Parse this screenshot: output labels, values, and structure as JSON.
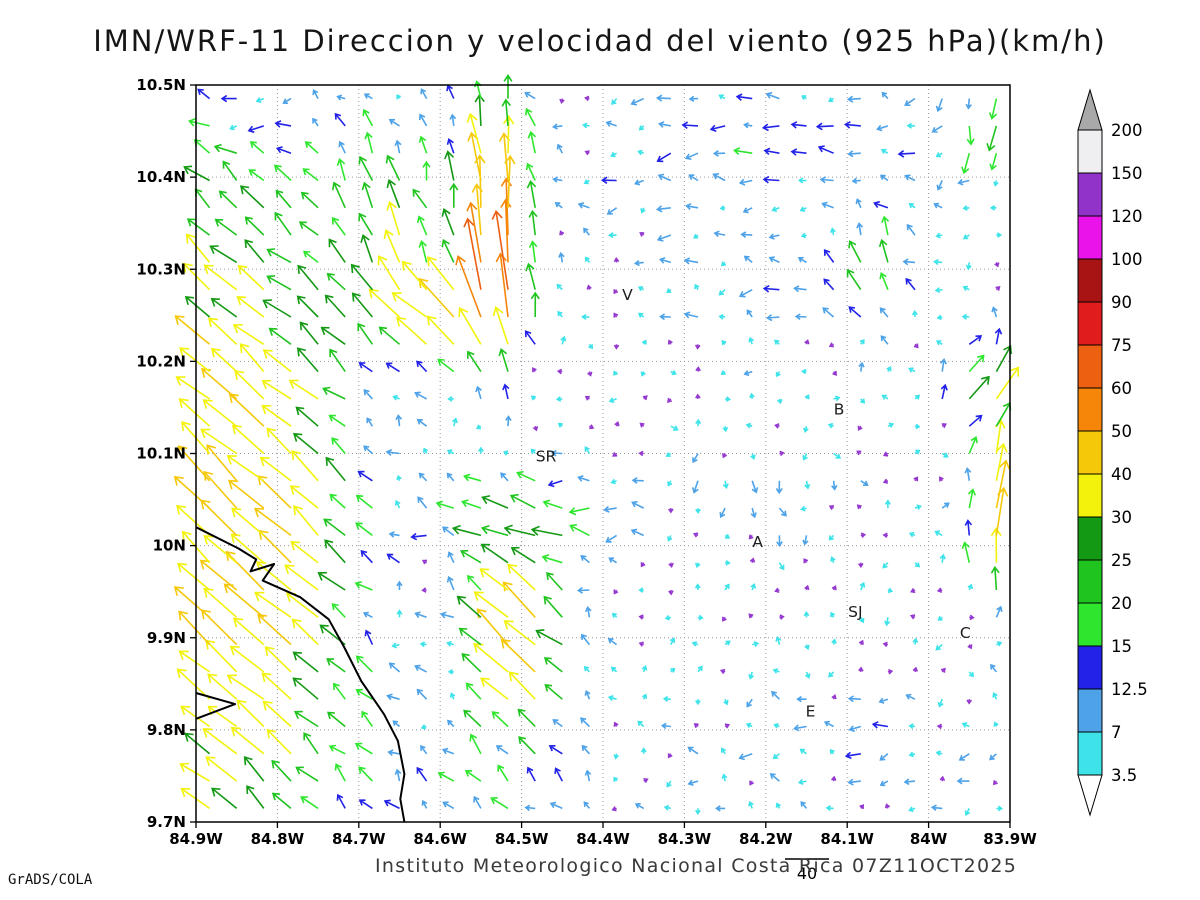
{
  "title": "IMN/WRF-11 Direccion y velocidad del viento (925 hPa)(km/h)",
  "footer": {
    "credit": "Instituto Meteorologico Nacional Costa Rica 07Z11OCT2025",
    "engine": "GrADS/COLA",
    "reference_vector_label": "40"
  },
  "axes": {
    "lat_ticks": [
      "10.5N",
      "10.4N",
      "10.3N",
      "10.2N",
      "10.1N",
      "10N",
      "9.9N",
      "9.8N",
      "9.7N"
    ],
    "lat_values": [
      10.5,
      10.4,
      10.3,
      10.2,
      10.1,
      10.0,
      9.9,
      9.8,
      9.7
    ],
    "lon_ticks": [
      "84.9W",
      "84.8W",
      "84.7W",
      "84.6W",
      "84.5W",
      "84.4W",
      "84.3W",
      "84.2W",
      "84.1W",
      "84W",
      "83.9W"
    ],
    "lon_values": [
      -84.9,
      -84.8,
      -84.7,
      -84.6,
      -84.5,
      -84.4,
      -84.3,
      -84.2,
      -84.1,
      -84.0,
      -83.9
    ]
  },
  "stations": [
    {
      "label": "V",
      "lon": -84.37,
      "lat": 10.272
    },
    {
      "label": "B",
      "lon": -84.11,
      "lat": 10.148
    },
    {
      "label": "SR",
      "lon": -84.47,
      "lat": 10.097
    },
    {
      "label": "A",
      "lon": -84.21,
      "lat": 10.004
    },
    {
      "label": "SJ",
      "lon": -84.09,
      "lat": 9.928
    },
    {
      "label": "C",
      "lon": -83.955,
      "lat": 9.905
    },
    {
      "label": "E",
      "lon": -84.145,
      "lat": 9.82
    }
  ],
  "chart_data": {
    "type": "vector_field",
    "variable": "wind direction and speed",
    "level": "925 hPa",
    "units": "km/h",
    "model": "IMN/WRF-11",
    "valid_time": "07Z11OCT2025",
    "lon_range": [
      -84.9,
      -83.9
    ],
    "lat_range": [
      9.7,
      10.5
    ],
    "grid_cols": 30,
    "grid_rows": 27,
    "reference_speed": 40,
    "noise_min": 1.5,
    "noise_max": 7,
    "colorbar": {
      "levels": [
        3.5,
        7,
        12.5,
        15,
        20,
        25,
        30,
        40,
        50,
        60,
        75,
        90,
        100,
        120,
        150,
        200
      ],
      "colors": [
        "#3de3e8",
        "#4da2e8",
        "#2222e8",
        "#2fe62f",
        "#1fc41f",
        "#149914",
        "#f2f20c",
        "#f5c80a",
        "#f5860a",
        "#ed5f11",
        "#e01c1c",
        "#a81414",
        "#ea13ea",
        "#9133c9",
        "#efeff2"
      ],
      "below_color": "#ffffff",
      "above_color": "#a9a9a9",
      "calm_color": "#9438cf"
    },
    "features": [
      {
        "name": "pacific-nw-flow",
        "lon": -84.88,
        "lat": 10.05,
        "dir": 140,
        "speed": 37,
        "rx": 0.17,
        "ry": 0.5
      },
      {
        "name": "coastal-yellow-band",
        "lon": -84.78,
        "lat": 9.95,
        "dir": 135,
        "speed": 14,
        "rx": 0.1,
        "ry": 0.25
      },
      {
        "name": "north-jet",
        "lon": -84.53,
        "lat": 10.35,
        "dir": 90,
        "speed": 55,
        "rx": 0.05,
        "ry": 0.14
      },
      {
        "name": "north-jet-core",
        "lon": -84.525,
        "lat": 10.27,
        "dir": 95,
        "speed": 28,
        "rx": 0.035,
        "ry": 0.05
      },
      {
        "name": "jet-west-fan",
        "lon": -84.6,
        "lat": 10.24,
        "dir": 150,
        "speed": 34,
        "rx": 0.08,
        "ry": 0.05
      },
      {
        "name": "nw-updraft-band",
        "lon": -84.66,
        "lat": 10.35,
        "dir": 105,
        "speed": 22,
        "rx": 0.07,
        "ry": 0.11
      },
      {
        "name": "top-easterlies",
        "lon": -84.2,
        "lat": 10.44,
        "dir": 185,
        "speed": 12,
        "rx": 0.3,
        "ry": 0.09
      },
      {
        "name": "mid-easterlies",
        "lon": -84.18,
        "lat": 10.28,
        "dir": 178,
        "speed": 9,
        "rx": 0.22,
        "ry": 0.07
      },
      {
        "name": "b-updraft",
        "lon": -84.07,
        "lat": 10.3,
        "dir": 88,
        "speed": 16,
        "rx": 0.045,
        "ry": 0.09
      },
      {
        "name": "central-westward",
        "lon": -84.48,
        "lat": 10.03,
        "dir": 175,
        "speed": 19,
        "rx": 0.13,
        "ry": 0.05
      },
      {
        "name": "central-downdraft",
        "lon": -84.21,
        "lat": 10.06,
        "dir": 270,
        "speed": 10,
        "rx": 0.08,
        "ry": 0.06
      },
      {
        "name": "south-nw-jet",
        "lon": -84.5,
        "lat": 9.9,
        "dir": 140,
        "speed": 44,
        "rx": 0.065,
        "ry": 0.1
      },
      {
        "name": "east-edge-jet",
        "lon": -83.91,
        "lat": 10.02,
        "dir": 85,
        "speed": 48,
        "rx": 0.04,
        "ry": 0.08
      },
      {
        "name": "east-mid-flow",
        "lon": -83.93,
        "lat": 10.17,
        "dir": 55,
        "speed": 30,
        "rx": 0.05,
        "ry": 0.06
      },
      {
        "name": "se-weak-easterlies",
        "lon": -84.1,
        "lat": 9.78,
        "dir": 175,
        "speed": 8,
        "rx": 0.25,
        "ry": 0.07
      },
      {
        "name": "south-coast-flow",
        "lon": -84.55,
        "lat": 9.74,
        "dir": 130,
        "speed": 14,
        "rx": 0.12,
        "ry": 0.06
      },
      {
        "name": "topleft-downdraft",
        "lon": -84.83,
        "lat": 10.48,
        "dir": 290,
        "speed": 16,
        "rx": 0.07,
        "ry": 0.05
      },
      {
        "name": "topright-downdraft",
        "lon": -83.93,
        "lat": 10.46,
        "dir": 280,
        "speed": 18,
        "rx": 0.05,
        "ry": 0.06
      }
    ],
    "coastlines": [
      [
        [
          -84.9,
          10.02
        ],
        [
          -84.848,
          9.997
        ],
        [
          -84.826,
          9.985
        ],
        [
          -84.833,
          9.972
        ],
        [
          -84.804,
          9.98
        ],
        [
          -84.818,
          9.962
        ],
        [
          -84.772,
          9.944
        ],
        [
          -84.737,
          9.92
        ],
        [
          -84.718,
          9.89
        ],
        [
          -84.697,
          9.853
        ],
        [
          -84.669,
          9.817
        ],
        [
          -84.652,
          9.788
        ],
        [
          -84.644,
          9.752
        ],
        [
          -84.649,
          9.725
        ],
        [
          -84.644,
          9.7
        ]
      ],
      [
        [
          -84.9,
          9.84
        ],
        [
          -84.852,
          9.828
        ],
        [
          -84.9,
          9.812
        ]
      ]
    ]
  }
}
